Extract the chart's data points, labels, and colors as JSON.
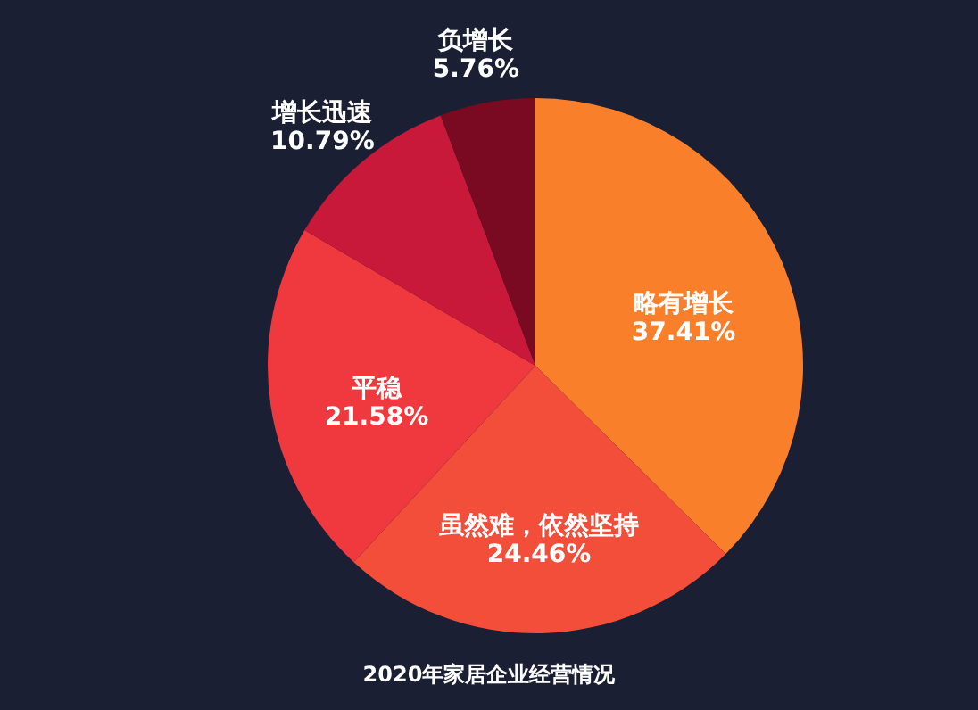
{
  "chart_data": {
    "type": "pie",
    "title": "2020年家居企业经营情况",
    "categories": [
      "略有增长",
      "虽然难，依然坚持",
      "平稳",
      "增长迅速",
      "负增长"
    ],
    "values": [
      37.41,
      24.46,
      21.58,
      10.79,
      5.76
    ],
    "value_labels": [
      "37.41%",
      "24.46%",
      "21.58%",
      "10.79%",
      "5.76%"
    ],
    "colors": [
      "#f97f2b",
      "#f24e3a",
      "#f0393f",
      "#c8193a",
      "#7a0a22"
    ]
  }
}
